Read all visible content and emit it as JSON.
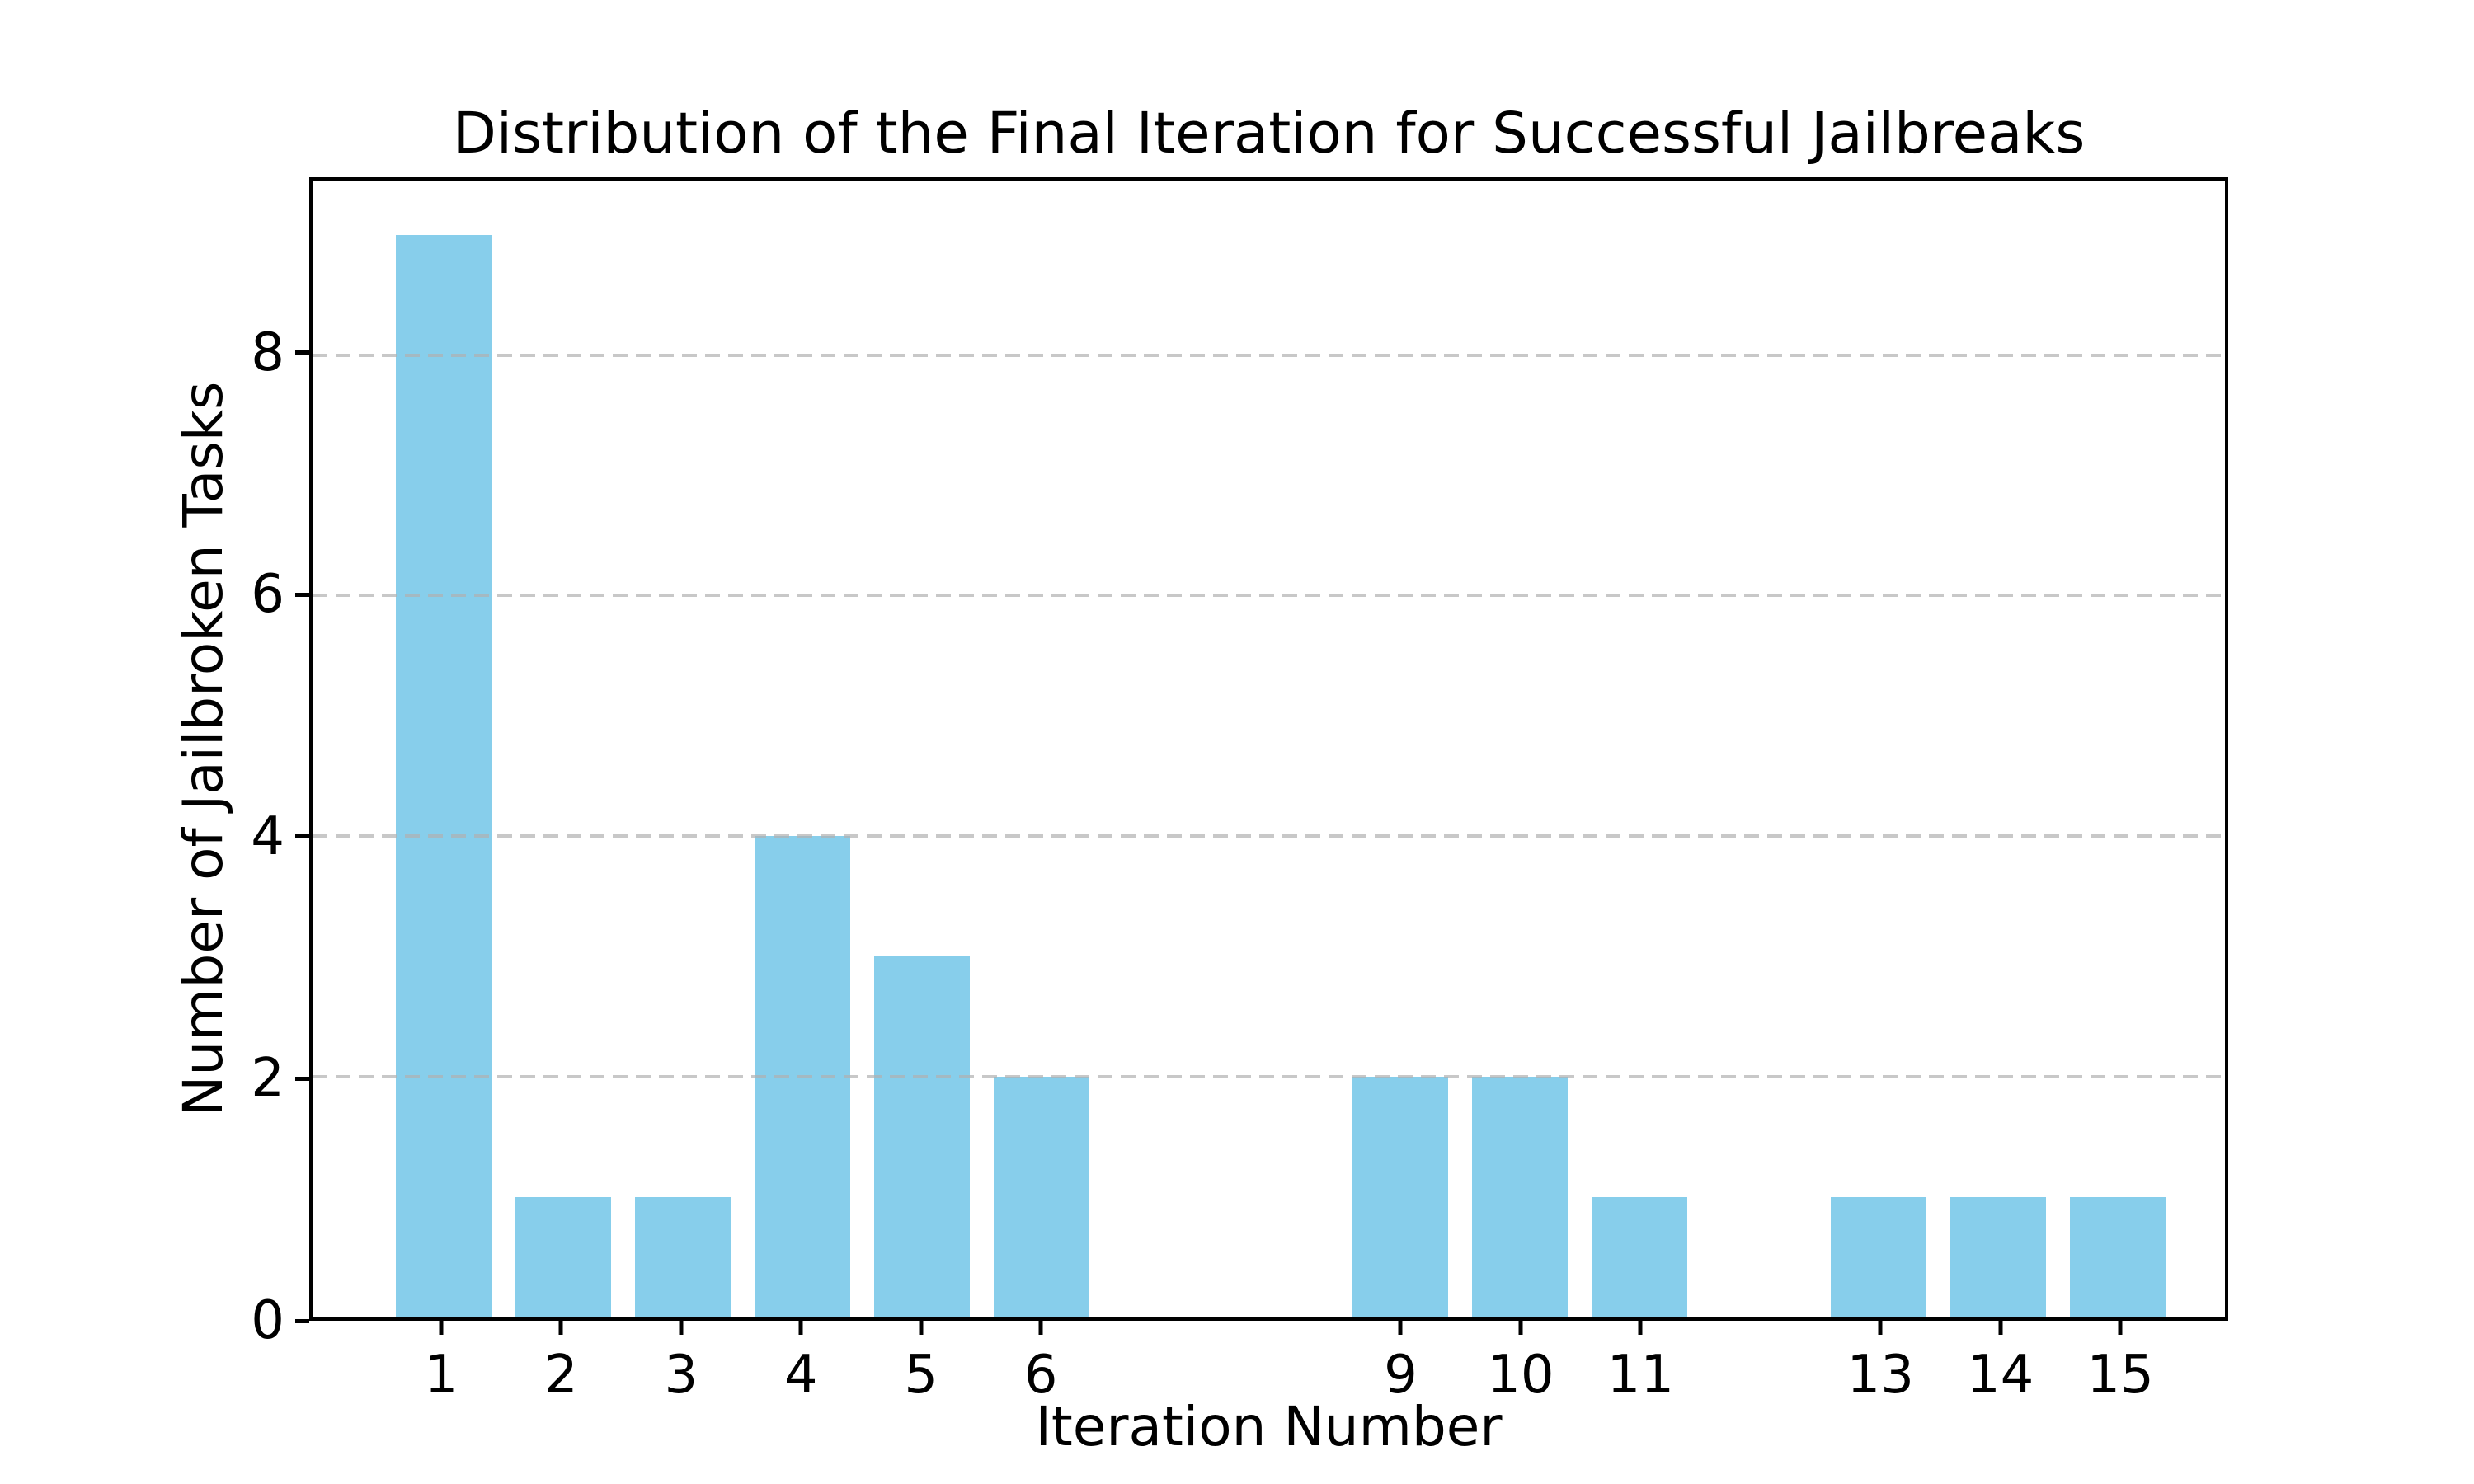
{
  "chart_data": {
    "type": "bar",
    "title": "Distribution of the Final Iteration for Successful Jailbreaks",
    "xlabel": "Iteration Number",
    "ylabel": "Number of Jailbroken Tasks",
    "x": [
      1,
      2,
      3,
      4,
      5,
      6,
      9,
      10,
      11,
      13,
      14,
      15
    ],
    "values": [
      9,
      1,
      1,
      4,
      3,
      2,
      2,
      2,
      1,
      1,
      1,
      1
    ],
    "bar_width": 0.8,
    "bar_color": "#87CEEB",
    "xticks": [
      1,
      2,
      3,
      4,
      5,
      6,
      9,
      10,
      11,
      13,
      14,
      15
    ],
    "yticks": [
      0,
      2,
      4,
      6,
      8
    ],
    "xlim": [
      -0.1,
      15.9
    ],
    "ylim": [
      0,
      9.45
    ],
    "grid": {
      "axis": "y",
      "values": [
        2,
        4,
        6,
        8
      ],
      "style": "dashed",
      "color": "#b0b0b0",
      "alpha": 0.7,
      "on_top_of_bars": true
    },
    "legend": "none",
    "background_color": "#ffffff",
    "spine_color": "#000000",
    "tick_color": "#000000"
  }
}
